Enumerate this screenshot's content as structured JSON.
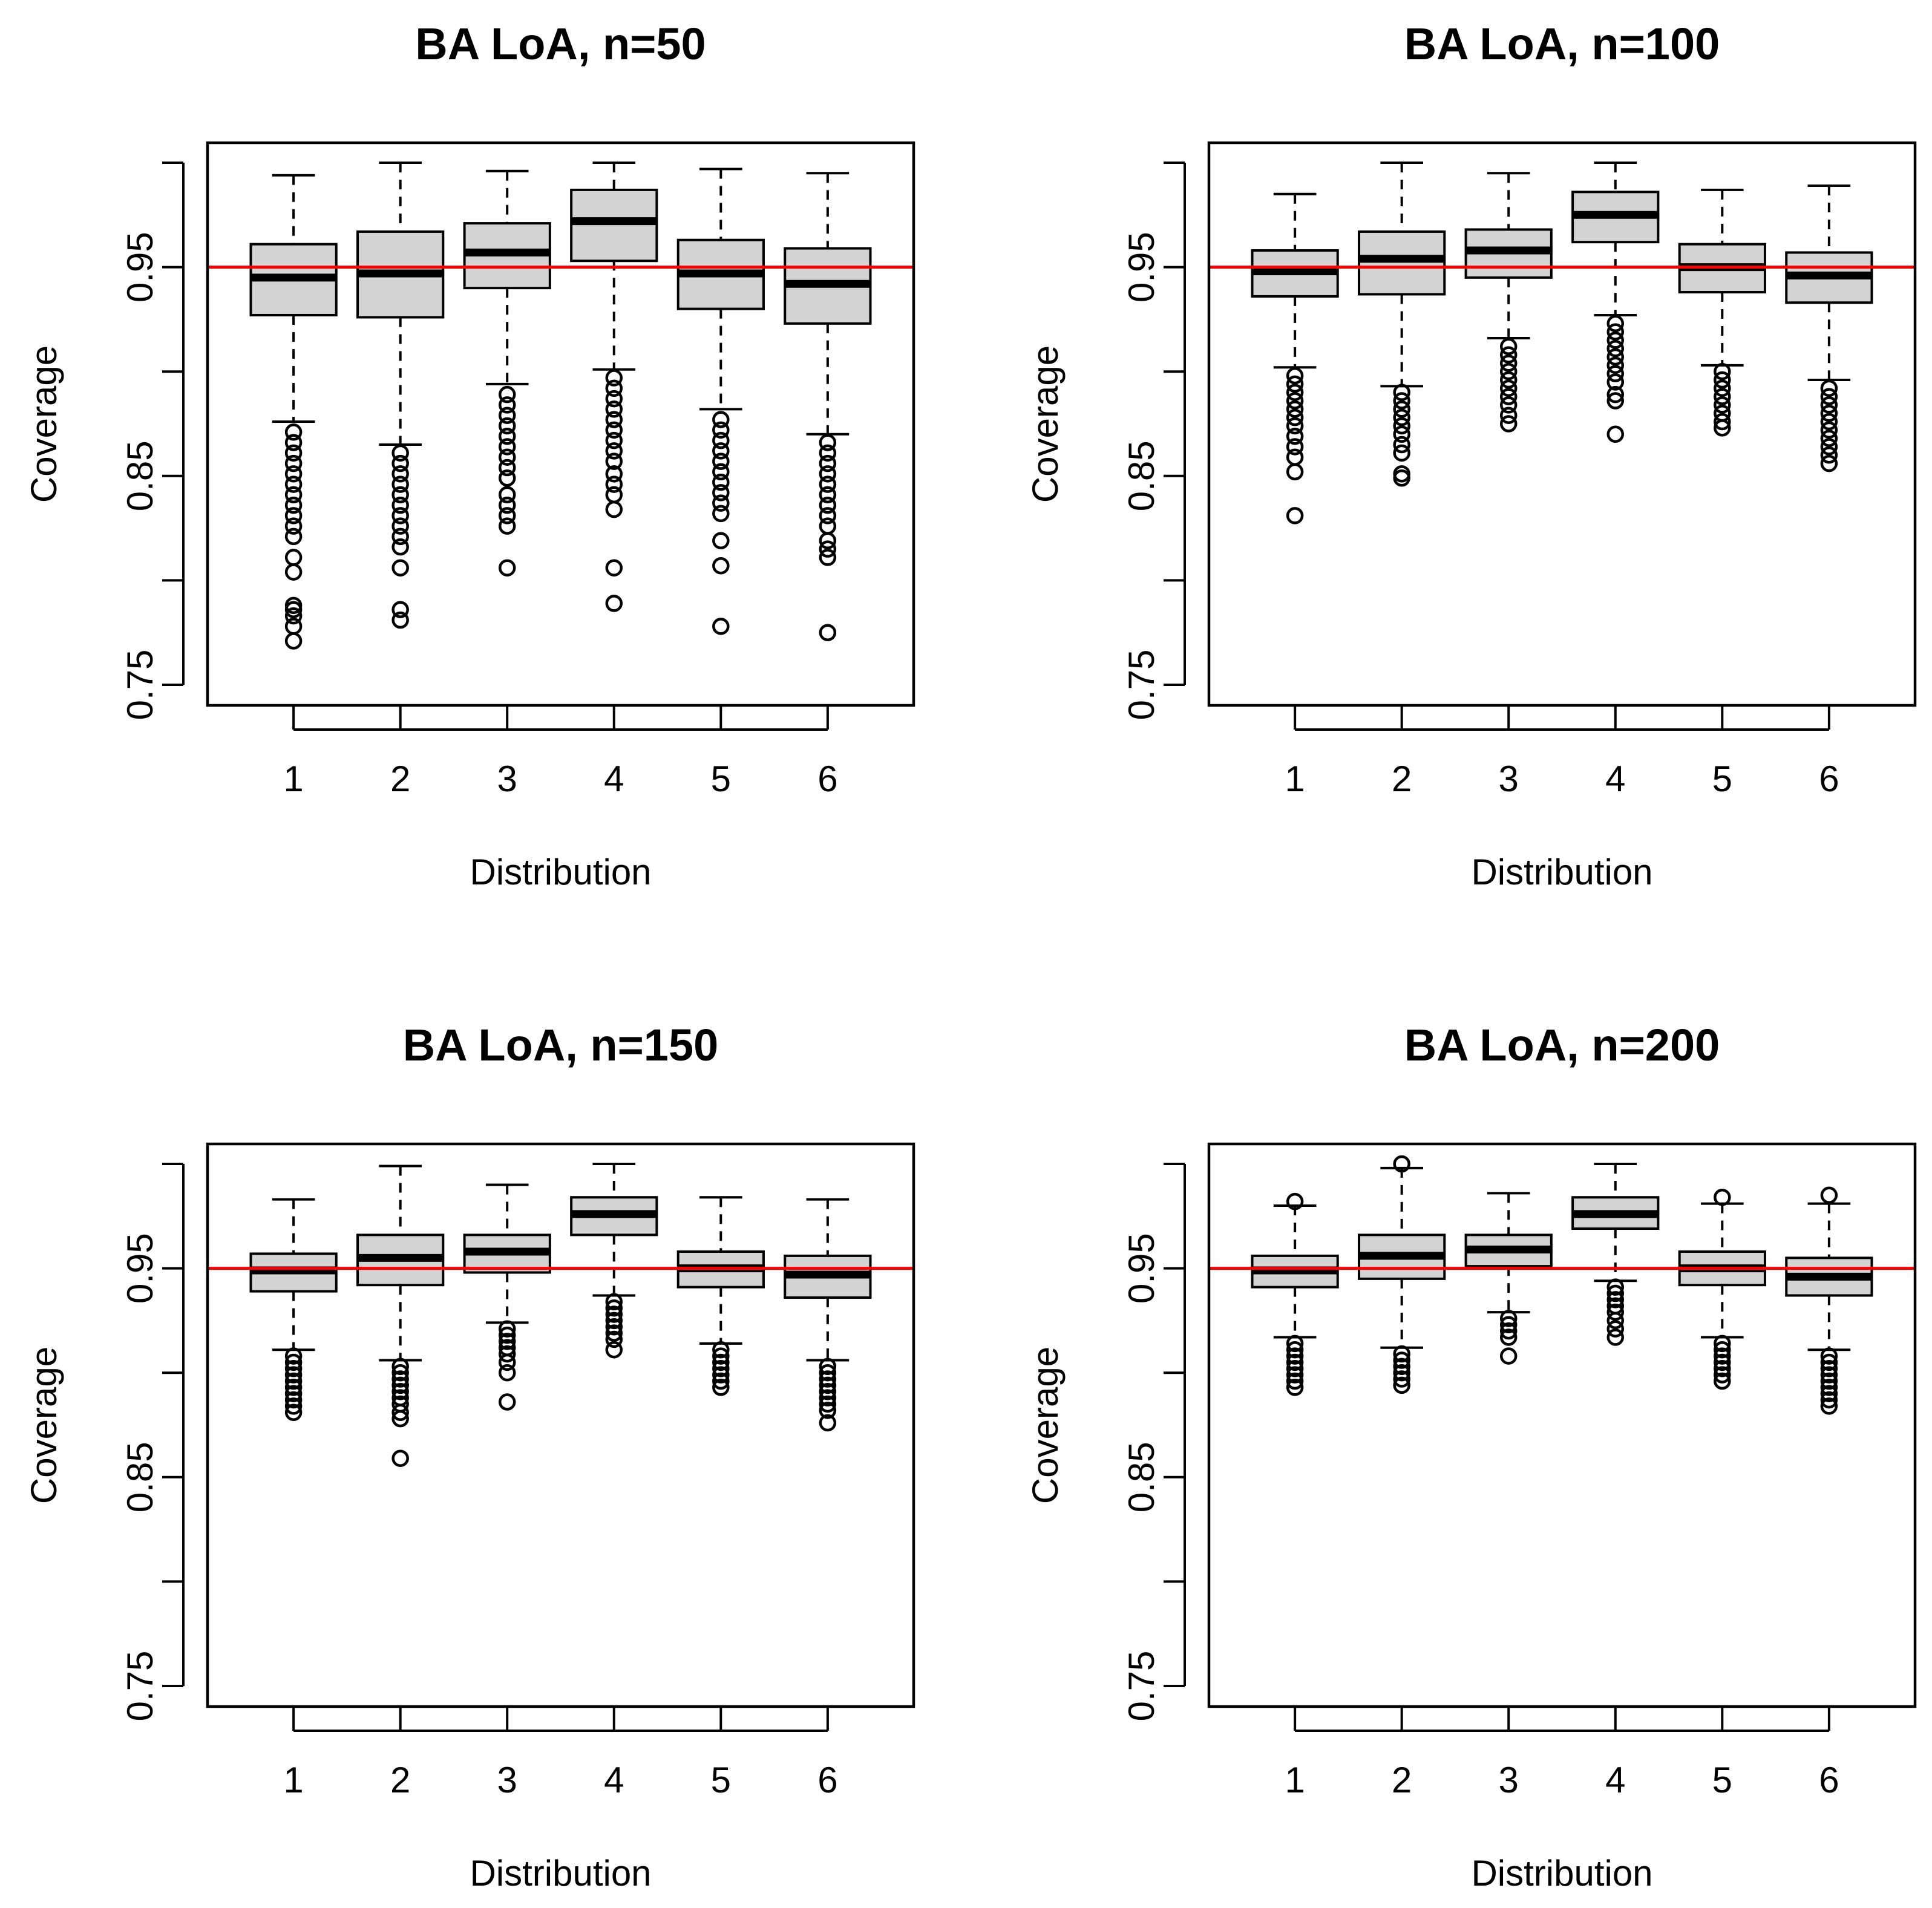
{
  "colors": {
    "box_fill": "#d3d3d3",
    "ref_line": "#ff0000",
    "ink": "#000000"
  },
  "chart_data": [
    {
      "type": "boxplot",
      "title": "BA LoA, n=50",
      "xlabel": "Distribution",
      "ylabel": "Coverage",
      "ylim": [
        0.74,
        1.005
      ],
      "yticks": [
        0.75,
        0.85,
        0.95
      ],
      "ytick_labels": [
        "0.75",
        "0.85",
        "0.95"
      ],
      "yticks_unlabeled": [
        0.8,
        0.9,
        1.0
      ],
      "categories": [
        "1",
        "2",
        "3",
        "4",
        "5",
        "6"
      ],
      "reference_line": 0.95,
      "boxes": [
        {
          "whisker_low": 0.876,
          "q1": 0.927,
          "median": 0.945,
          "q3": 0.961,
          "whisker_high": 0.994,
          "outliers": [
            0.871,
            0.866,
            0.861,
            0.856,
            0.851,
            0.846,
            0.841,
            0.836,
            0.831,
            0.826,
            0.821,
            0.811,
            0.804,
            0.788,
            0.786,
            0.783,
            0.778,
            0.771
          ]
        },
        {
          "whisker_low": 0.865,
          "q1": 0.926,
          "median": 0.947,
          "q3": 0.967,
          "whisker_high": 1.0,
          "outliers": [
            0.861,
            0.856,
            0.851,
            0.846,
            0.841,
            0.836,
            0.831,
            0.826,
            0.821,
            0.816,
            0.806,
            0.786,
            0.781
          ]
        },
        {
          "whisker_low": 0.894,
          "q1": 0.94,
          "median": 0.957,
          "q3": 0.971,
          "whisker_high": 0.996,
          "outliers": [
            0.889,
            0.884,
            0.879,
            0.874,
            0.869,
            0.864,
            0.859,
            0.854,
            0.849,
            0.841,
            0.836,
            0.831,
            0.826,
            0.806
          ]
        },
        {
          "whisker_low": 0.901,
          "q1": 0.953,
          "median": 0.972,
          "q3": 0.987,
          "whisker_high": 1.0,
          "outliers": [
            0.897,
            0.892,
            0.887,
            0.882,
            0.877,
            0.872,
            0.867,
            0.862,
            0.857,
            0.851,
            0.846,
            0.841,
            0.834,
            0.806,
            0.789
          ]
        },
        {
          "whisker_low": 0.882,
          "q1": 0.93,
          "median": 0.947,
          "q3": 0.963,
          "whisker_high": 0.997,
          "outliers": [
            0.877,
            0.872,
            0.867,
            0.862,
            0.857,
            0.852,
            0.847,
            0.842,
            0.837,
            0.832,
            0.819,
            0.807,
            0.778
          ]
        },
        {
          "whisker_low": 0.87,
          "q1": 0.923,
          "median": 0.942,
          "q3": 0.959,
          "whisker_high": 0.995,
          "outliers": [
            0.866,
            0.861,
            0.856,
            0.851,
            0.846,
            0.841,
            0.836,
            0.831,
            0.826,
            0.819,
            0.815,
            0.811,
            0.775
          ]
        }
      ]
    },
    {
      "type": "boxplot",
      "title": "BA LoA, n=100",
      "xlabel": "Distribution",
      "ylabel": "Coverage",
      "ylim": [
        0.74,
        1.005
      ],
      "yticks": [
        0.75,
        0.85,
        0.95
      ],
      "ytick_labels": [
        "0.75",
        "0.85",
        "0.95"
      ],
      "yticks_unlabeled": [
        0.8,
        0.9,
        1.0
      ],
      "categories": [
        "1",
        "2",
        "3",
        "4",
        "5",
        "6"
      ],
      "reference_line": 0.95,
      "boxes": [
        {
          "whisker_low": 0.902,
          "q1": 0.936,
          "median": 0.948,
          "q3": 0.958,
          "whisker_high": 0.985,
          "outliers": [
            0.898,
            0.894,
            0.89,
            0.886,
            0.882,
            0.878,
            0.874,
            0.869,
            0.864,
            0.859,
            0.852,
            0.831
          ]
        },
        {
          "whisker_low": 0.893,
          "q1": 0.937,
          "median": 0.954,
          "q3": 0.967,
          "whisker_high": 1.0,
          "outliers": [
            0.89,
            0.886,
            0.882,
            0.878,
            0.874,
            0.87,
            0.865,
            0.861,
            0.851,
            0.849
          ]
        },
        {
          "whisker_low": 0.916,
          "q1": 0.945,
          "median": 0.958,
          "q3": 0.968,
          "whisker_high": 0.995,
          "outliers": [
            0.912,
            0.908,
            0.904,
            0.9,
            0.896,
            0.892,
            0.888,
            0.884,
            0.879,
            0.875
          ]
        },
        {
          "whisker_low": 0.927,
          "q1": 0.962,
          "median": 0.975,
          "q3": 0.986,
          "whisker_high": 1.0,
          "outliers": [
            0.923,
            0.919,
            0.915,
            0.911,
            0.907,
            0.903,
            0.899,
            0.895,
            0.889,
            0.886,
            0.87
          ]
        },
        {
          "whisker_low": 0.903,
          "q1": 0.938,
          "median": 0.95,
          "q3": 0.961,
          "whisker_high": 0.987,
          "outliers": [
            0.9,
            0.896,
            0.892,
            0.888,
            0.884,
            0.88,
            0.876,
            0.873
          ]
        },
        {
          "whisker_low": 0.896,
          "q1": 0.933,
          "median": 0.946,
          "q3": 0.957,
          "whisker_high": 0.989,
          "outliers": [
            0.892,
            0.888,
            0.884,
            0.88,
            0.876,
            0.872,
            0.868,
            0.864,
            0.86,
            0.856
          ]
        }
      ]
    },
    {
      "type": "boxplot",
      "title": "BA LoA, n=150",
      "xlabel": "Distribution",
      "ylabel": "Coverage",
      "ylim": [
        0.74,
        1.005
      ],
      "yticks": [
        0.75,
        0.85,
        0.95
      ],
      "ytick_labels": [
        "0.75",
        "0.85",
        "0.95"
      ],
      "yticks_unlabeled": [
        0.8,
        0.9,
        1.0
      ],
      "categories": [
        "1",
        "2",
        "3",
        "4",
        "5",
        "6"
      ],
      "reference_line": 0.95,
      "boxes": [
        {
          "whisker_low": 0.911,
          "q1": 0.939,
          "median": 0.949,
          "q3": 0.957,
          "whisker_high": 0.983,
          "outliers": [
            0.908,
            0.905,
            0.902,
            0.899,
            0.896,
            0.893,
            0.89,
            0.887,
            0.884,
            0.881
          ]
        },
        {
          "whisker_low": 0.906,
          "q1": 0.942,
          "median": 0.955,
          "q3": 0.966,
          "whisker_high": 0.999,
          "outliers": [
            0.903,
            0.9,
            0.897,
            0.894,
            0.891,
            0.888,
            0.885,
            0.881,
            0.878,
            0.859
          ]
        },
        {
          "whisker_low": 0.924,
          "q1": 0.948,
          "median": 0.958,
          "q3": 0.966,
          "whisker_high": 0.99,
          "outliers": [
            0.921,
            0.918,
            0.915,
            0.912,
            0.909,
            0.905,
            0.9,
            0.886
          ]
        },
        {
          "whisker_low": 0.937,
          "q1": 0.966,
          "median": 0.976,
          "q3": 0.984,
          "whisker_high": 1.0,
          "outliers": [
            0.934,
            0.931,
            0.928,
            0.925,
            0.922,
            0.919,
            0.916,
            0.911
          ]
        },
        {
          "whisker_low": 0.914,
          "q1": 0.941,
          "median": 0.95,
          "q3": 0.958,
          "whisker_high": 0.984,
          "outliers": [
            0.911,
            0.908,
            0.905,
            0.902,
            0.899,
            0.896,
            0.893
          ]
        },
        {
          "whisker_low": 0.906,
          "q1": 0.936,
          "median": 0.947,
          "q3": 0.956,
          "whisker_high": 0.983,
          "outliers": [
            0.903,
            0.9,
            0.897,
            0.894,
            0.891,
            0.888,
            0.885,
            0.882,
            0.876
          ]
        }
      ]
    },
    {
      "type": "boxplot",
      "title": "BA LoA, n=200",
      "xlabel": "Distribution",
      "ylabel": "Coverage",
      "ylim": [
        0.74,
        1.005
      ],
      "yticks": [
        0.75,
        0.85,
        0.95
      ],
      "ytick_labels": [
        "0.75",
        "0.85",
        "0.95"
      ],
      "yticks_unlabeled": [
        0.8,
        0.9,
        1.0
      ],
      "categories": [
        "1",
        "2",
        "3",
        "4",
        "5",
        "6"
      ],
      "reference_line": 0.95,
      "boxes": [
        {
          "whisker_low": 0.917,
          "q1": 0.941,
          "median": 0.949,
          "q3": 0.956,
          "whisker_high": 0.98,
          "outliers": [
            0.982,
            0.914,
            0.911,
            0.908,
            0.905,
            0.902,
            0.899,
            0.896,
            0.893
          ]
        },
        {
          "whisker_low": 0.912,
          "q1": 0.945,
          "median": 0.956,
          "q3": 0.966,
          "whisker_high": 0.998,
          "outliers": [
            1.0,
            0.909,
            0.906,
            0.903,
            0.9,
            0.897,
            0.894
          ]
        },
        {
          "whisker_low": 0.929,
          "q1": 0.951,
          "median": 0.959,
          "q3": 0.966,
          "whisker_high": 0.986,
          "outliers": [
            0.926,
            0.923,
            0.92,
            0.917,
            0.908
          ]
        },
        {
          "whisker_low": 0.944,
          "q1": 0.969,
          "median": 0.976,
          "q3": 0.984,
          "whisker_high": 1.0,
          "outliers": [
            0.941,
            0.938,
            0.935,
            0.932,
            0.929,
            0.925,
            0.921,
            0.917
          ]
        },
        {
          "whisker_low": 0.917,
          "q1": 0.942,
          "median": 0.95,
          "q3": 0.958,
          "whisker_high": 0.981,
          "outliers": [
            0.984,
            0.914,
            0.911,
            0.908,
            0.905,
            0.902,
            0.899,
            0.896
          ]
        },
        {
          "whisker_low": 0.911,
          "q1": 0.937,
          "median": 0.946,
          "q3": 0.955,
          "whisker_high": 0.981,
          "outliers": [
            0.985,
            0.908,
            0.905,
            0.902,
            0.899,
            0.896,
            0.893,
            0.89,
            0.887,
            0.884
          ]
        }
      ]
    }
  ]
}
